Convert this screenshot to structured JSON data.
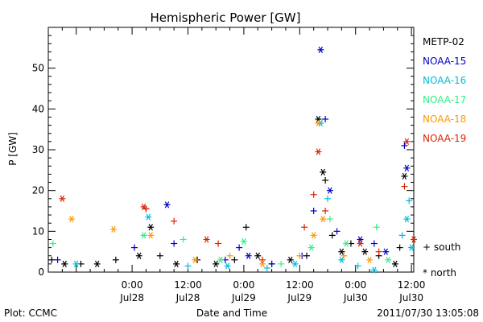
{
  "chart_data": {
    "type": "scatter",
    "title": "Hemispheric Power [GW]",
    "xlabel": "Date and Time",
    "ylabel": "P [GW]",
    "xlim": [
      "2011-07-27T06:00",
      "2011-07-30T12:30"
    ],
    "ylim": [
      0,
      60
    ],
    "grid": false,
    "y_ticks": [
      0,
      10,
      20,
      30,
      40,
      50
    ],
    "x_ticks": [
      {
        "t": "2011-07-28T00:00",
        "time": "0:00",
        "date": "Jul28"
      },
      {
        "t": "2011-07-28T12:00",
        "time": "12:00",
        "date": "Jul28"
      },
      {
        "t": "2011-07-29T00:00",
        "time": "0:00",
        "date": "Jul29"
      },
      {
        "t": "2011-07-29T12:00",
        "time": "12:00",
        "date": "Jul29"
      },
      {
        "t": "2011-07-30T00:00",
        "time": "0:00",
        "date": "Jul30"
      },
      {
        "t": "2011-07-30T12:00",
        "time": "12:00",
        "date": "Jul30"
      }
    ],
    "legend_placement": "right",
    "series": [
      {
        "name": "METP-02",
        "color": "#000000",
        "points": [
          [
            "2011-07-27T06:45",
            3,
            "+"
          ],
          [
            "2011-07-27T09:30",
            2,
            "*"
          ],
          [
            "2011-07-27T13:00",
            2,
            "+"
          ],
          [
            "2011-07-27T16:30",
            2,
            "*"
          ],
          [
            "2011-07-27T20:30",
            3,
            "+"
          ],
          [
            "2011-07-28T01:30",
            4,
            "*"
          ],
          [
            "2011-07-28T04:00",
            11,
            "*"
          ],
          [
            "2011-07-28T06:00",
            4,
            "+"
          ],
          [
            "2011-07-28T09:30",
            2,
            "*"
          ],
          [
            "2011-07-28T14:00",
            3,
            "+"
          ],
          [
            "2011-07-28T18:00",
            2,
            "*"
          ],
          [
            "2011-07-28T22:00",
            3,
            "+"
          ],
          [
            "2011-07-29T00:30",
            11,
            "+"
          ],
          [
            "2011-07-29T03:00",
            4,
            "*"
          ],
          [
            "2011-07-29T06:00",
            2,
            "+"
          ],
          [
            "2011-07-29T10:00",
            3,
            "*"
          ],
          [
            "2011-07-29T13:30",
            4,
            "+"
          ],
          [
            "2011-07-29T16:00",
            37.5,
            "*"
          ],
          [
            "2011-07-29T17:00",
            24.5,
            "*"
          ],
          [
            "2011-07-29T17:30",
            22.5,
            "+"
          ],
          [
            "2011-07-29T19:00",
            9,
            "+"
          ],
          [
            "2011-07-29T21:00",
            5,
            "*"
          ],
          [
            "2011-07-29T23:00",
            7,
            "+"
          ],
          [
            "2011-07-30T02:00",
            5,
            "*"
          ],
          [
            "2011-07-30T05:00",
            4,
            "+"
          ],
          [
            "2011-07-30T08:30",
            2,
            "*"
          ],
          [
            "2011-07-30T10:30",
            23.5,
            "*"
          ],
          [
            "2011-07-30T09:30",
            6,
            "+"
          ]
        ]
      },
      {
        "name": "NOAA-15",
        "color": "#0000cc",
        "points": [
          [
            "2011-07-27T08:00",
            3,
            "+"
          ],
          [
            "2011-07-28T00:30",
            6,
            "+"
          ],
          [
            "2011-07-28T03:00",
            15.5,
            "+"
          ],
          [
            "2011-07-28T07:30",
            16.5,
            "*"
          ],
          [
            "2011-07-28T09:00",
            7,
            "+"
          ],
          [
            "2011-07-28T20:00",
            3,
            "+"
          ],
          [
            "2011-07-28T23:00",
            6,
            "+"
          ],
          [
            "2011-07-29T01:00",
            4,
            "*"
          ],
          [
            "2011-07-29T06:00",
            2,
            "+"
          ],
          [
            "2011-07-29T12:30",
            4,
            "+"
          ],
          [
            "2011-07-29T15:00",
            15,
            "+"
          ],
          [
            "2011-07-29T16:30",
            54.5,
            "*"
          ],
          [
            "2011-07-29T17:30",
            37.5,
            "+"
          ],
          [
            "2011-07-29T18:30",
            20,
            "*"
          ],
          [
            "2011-07-29T20:00",
            10,
            "+"
          ],
          [
            "2011-07-30T01:00",
            8,
            "*"
          ],
          [
            "2011-07-30T04:00",
            7,
            "+"
          ],
          [
            "2011-07-30T06:30",
            5,
            "*"
          ],
          [
            "2011-07-30T10:30",
            31,
            "+"
          ],
          [
            "2011-07-30T11:00",
            25.5,
            "*"
          ]
        ]
      },
      {
        "name": "NOAA-16",
        "color": "#00bbdd",
        "points": [
          [
            "2011-07-27T12:00",
            2,
            "*"
          ],
          [
            "2011-07-28T03:30",
            13.5,
            "*"
          ],
          [
            "2011-07-28T12:00",
            1.5,
            "+"
          ],
          [
            "2011-07-28T20:30",
            1.5,
            "*"
          ],
          [
            "2011-07-29T05:00",
            1,
            "+"
          ],
          [
            "2011-07-29T11:00",
            2,
            "*"
          ],
          [
            "2011-07-29T16:30",
            36.5,
            "*"
          ],
          [
            "2011-07-29T18:00",
            18,
            "+"
          ],
          [
            "2011-07-29T21:00",
            3,
            "*"
          ],
          [
            "2011-07-30T00:30",
            1.5,
            "+"
          ],
          [
            "2011-07-30T04:00",
            0.5,
            "*"
          ],
          [
            "2011-07-30T10:00",
            9,
            "+"
          ],
          [
            "2011-07-30T11:00",
            13,
            "*"
          ],
          [
            "2011-07-30T11:30",
            17.5,
            "+"
          ],
          [
            "2011-07-30T12:00",
            6,
            "*"
          ]
        ]
      },
      {
        "name": "NOAA-17",
        "color": "#33ee88",
        "points": [
          [
            "2011-07-27T07:00",
            7,
            "+"
          ],
          [
            "2011-07-28T02:30",
            9,
            "*"
          ],
          [
            "2011-07-28T11:00",
            8,
            "+"
          ],
          [
            "2011-07-28T19:00",
            3,
            "*"
          ],
          [
            "2011-07-29T00:00",
            7.5,
            "*"
          ],
          [
            "2011-07-29T08:00",
            2,
            "+"
          ],
          [
            "2011-07-29T14:30",
            6,
            "*"
          ],
          [
            "2011-07-29T18:30",
            13,
            "+"
          ],
          [
            "2011-07-29T22:00",
            7,
            "*"
          ],
          [
            "2011-07-30T04:30",
            11,
            "+"
          ],
          [
            "2011-07-30T07:00",
            3,
            "*"
          ]
        ]
      },
      {
        "name": "NOAA-18",
        "color": "#ff9900",
        "points": [
          [
            "2011-07-27T11:00",
            13,
            "*"
          ],
          [
            "2011-07-27T20:00",
            10.5,
            "*"
          ],
          [
            "2011-07-28T04:00",
            9,
            "*"
          ],
          [
            "2011-07-28T13:30",
            3,
            "*"
          ],
          [
            "2011-07-28T21:00",
            4,
            "+"
          ],
          [
            "2011-07-29T04:00",
            2,
            "*"
          ],
          [
            "2011-07-29T12:00",
            4,
            "+"
          ],
          [
            "2011-07-29T15:00",
            9,
            "*"
          ],
          [
            "2011-07-29T16:00",
            36.5,
            "*"
          ],
          [
            "2011-07-29T17:00",
            13,
            "*"
          ],
          [
            "2011-07-29T21:30",
            4,
            "+"
          ],
          [
            "2011-07-30T03:00",
            3,
            "*"
          ]
        ]
      },
      {
        "name": "NOAA-19",
        "color": "#dd2200",
        "points": [
          [
            "2011-07-27T09:00",
            18,
            "*"
          ],
          [
            "2011-07-28T02:30",
            16,
            "*"
          ],
          [
            "2011-07-28T03:00",
            15.5,
            "+"
          ],
          [
            "2011-07-28T09:00",
            12.5,
            "+"
          ],
          [
            "2011-07-28T16:00",
            8,
            "*"
          ],
          [
            "2011-07-28T18:30",
            7,
            "+"
          ],
          [
            "2011-07-29T04:00",
            3,
            "+"
          ],
          [
            "2011-07-29T13:00",
            11,
            "+"
          ],
          [
            "2011-07-29T15:00",
            19,
            "+"
          ],
          [
            "2011-07-29T16:00",
            29.5,
            "*"
          ],
          [
            "2011-07-29T17:30",
            15,
            "+"
          ],
          [
            "2011-07-30T01:00",
            7,
            "*"
          ],
          [
            "2011-07-30T05:00",
            5,
            "+"
          ],
          [
            "2011-07-30T10:30",
            21,
            "+"
          ],
          [
            "2011-07-30T11:00",
            32,
            "*"
          ],
          [
            "2011-07-30T12:30",
            8,
            "*"
          ]
        ]
      }
    ],
    "marker_legend": [
      {
        "symbol": "+",
        "label": "south"
      },
      {
        "symbol": "*",
        "label": "north"
      }
    ]
  },
  "footer": {
    "plot_credit": "Plot: CCMC",
    "timestamp": "2011/07/30 13:05:08"
  }
}
